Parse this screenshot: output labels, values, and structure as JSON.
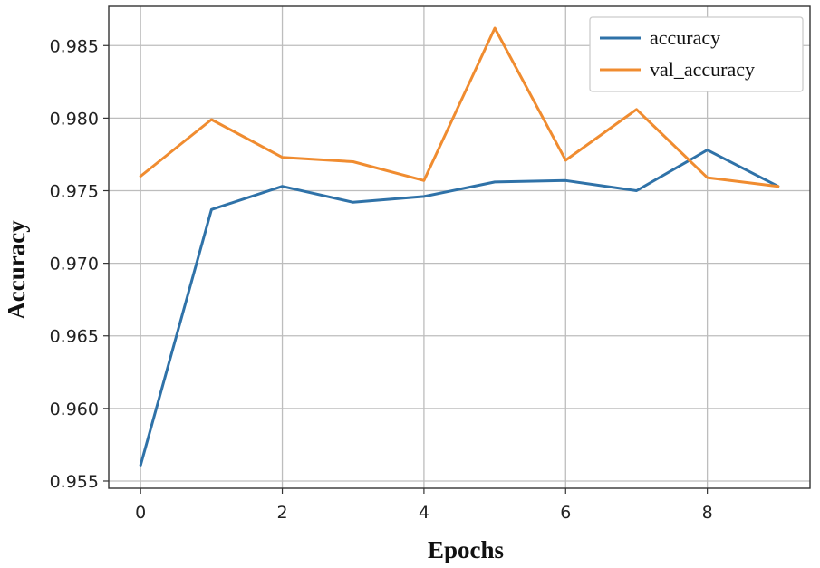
{
  "chart_data": {
    "type": "line",
    "title": "",
    "xlabel": "Epochs",
    "ylabel": "Accuracy",
    "x": [
      0,
      1,
      2,
      3,
      4,
      5,
      6,
      7,
      8,
      9
    ],
    "xlim": [
      -0.45,
      9.45
    ],
    "ylim": [
      0.9545,
      0.9877
    ],
    "xticks": [
      0,
      2,
      4,
      6,
      8
    ],
    "xtick_labels": [
      "0",
      "2",
      "4",
      "6",
      "8"
    ],
    "yticks": [
      0.955,
      0.96,
      0.965,
      0.97,
      0.975,
      0.98,
      0.985
    ],
    "ytick_labels": [
      "0.955",
      "0.960",
      "0.965",
      "0.970",
      "0.975",
      "0.980",
      "0.985"
    ],
    "grid": true,
    "legend_position": "top-right",
    "series": [
      {
        "name": "accuracy",
        "color": "#2f72a8",
        "values": [
          0.9561,
          0.9737,
          0.9753,
          0.9742,
          0.9746,
          0.9756,
          0.9757,
          0.975,
          0.9778,
          0.9753
        ]
      },
      {
        "name": "val_accuracy",
        "color": "#f08c30",
        "values": [
          0.976,
          0.9799,
          0.9773,
          0.977,
          0.9757,
          0.9862,
          0.9771,
          0.9806,
          0.9759,
          0.9753
        ]
      }
    ]
  }
}
